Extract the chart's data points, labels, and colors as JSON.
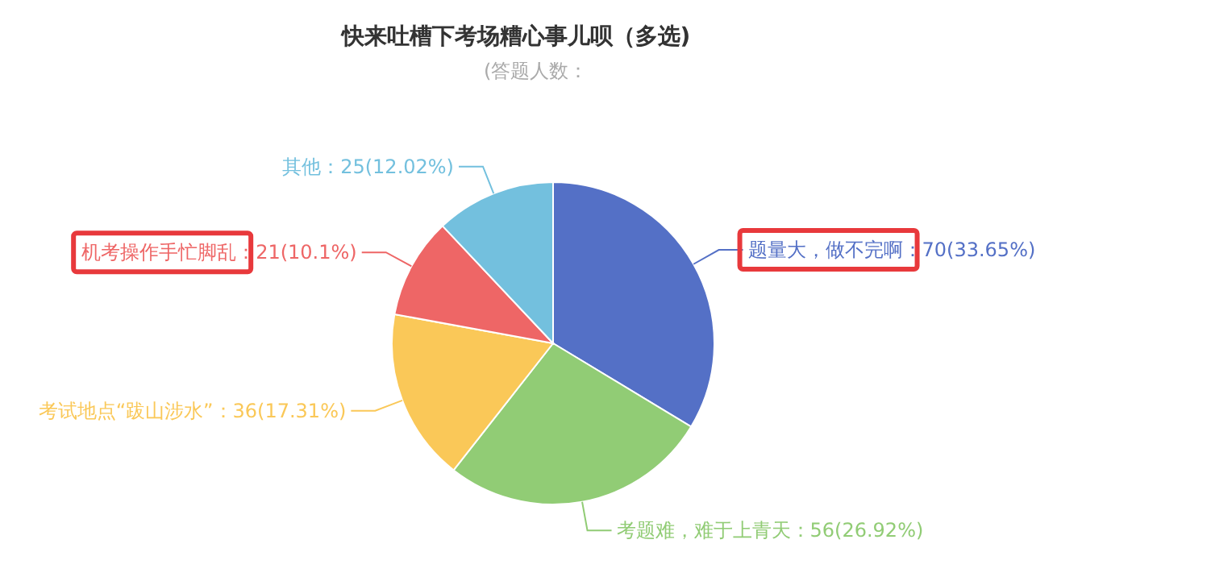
{
  "chart_data": {
    "type": "pie",
    "title": "快来吐槽下考场糟心事儿呗（多选)",
    "subtitle": "(答题人数：",
    "categories": [
      "题量大，做不完啊",
      "考题难，难于上青天",
      "考试地点“跋山涉水”",
      "机考操作手忙脚乱",
      "其他"
    ],
    "values": [
      70,
      56,
      36,
      21,
      25
    ],
    "value_labels": [
      "70(33.65%)",
      "56(26.92%)",
      "36(17.31%)",
      "21(10.1%)",
      "25(12.02%)"
    ],
    "colors": [
      "#5470c6",
      "#91cc75",
      "#fac858",
      "#ee6666",
      "#73c0de"
    ]
  }
}
